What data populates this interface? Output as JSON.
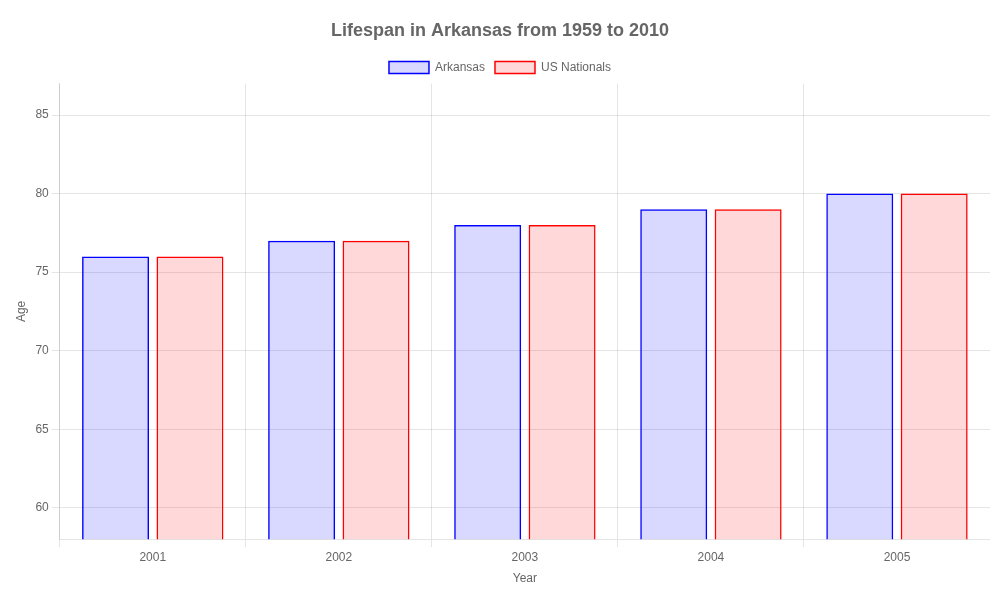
{
  "chart_data": {
    "type": "bar",
    "title": "Lifespan in Arkansas from 1959 to 2010",
    "x_label": "Year",
    "y_label": "Age",
    "categories": [
      "2001",
      "2002",
      "2003",
      "2004",
      "2005"
    ],
    "series": [
      {
        "name": "Arkansas",
        "color": "#0000ff",
        "values": [
          76,
          77,
          78,
          79,
          80
        ]
      },
      {
        "name": "US Nationals",
        "color": "#ff0000",
        "values": [
          76,
          77,
          78,
          79,
          80
        ]
      }
    ],
    "ylim": [
      58,
      87
    ],
    "yticks": [
      60,
      65,
      70,
      75,
      80,
      85
    ],
    "grid": true,
    "legend": "top"
  }
}
